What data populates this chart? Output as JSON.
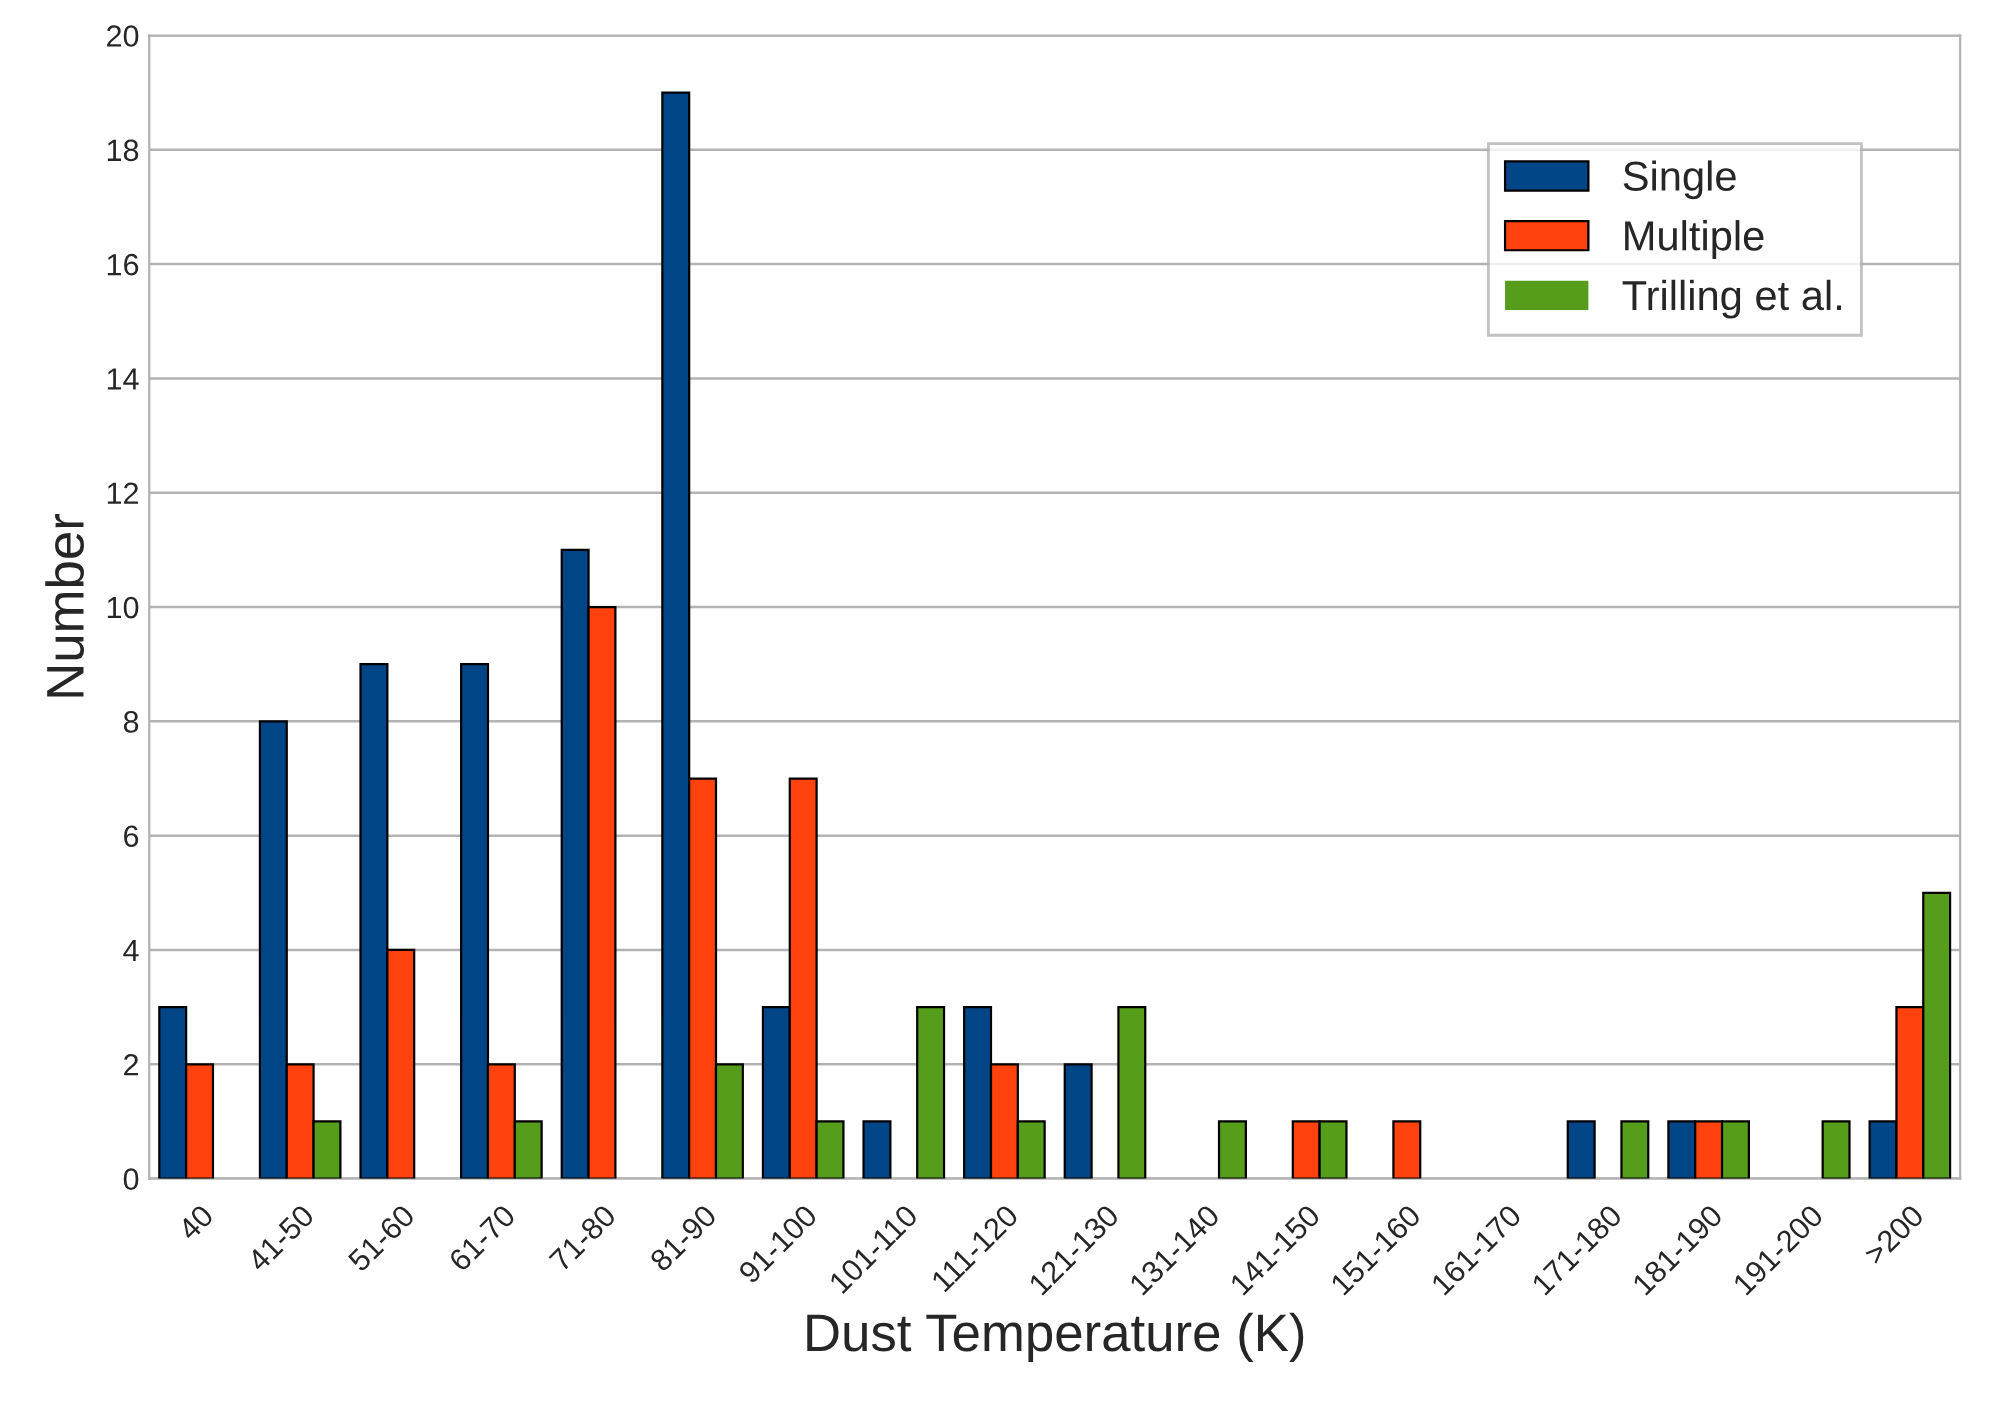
{
  "chart_data": {
    "type": "bar",
    "xlabel": "Dust Temperature (K)",
    "ylabel": "Number",
    "categories": [
      "40",
      "41-50",
      "51-60",
      "61-70",
      "71-80",
      "81-90",
      "91-100",
      "101-110",
      "111-120",
      "121-130",
      "131-140",
      "141-150",
      "151-160",
      "161-170",
      "171-180",
      "181-190",
      "191-200",
      ">200"
    ],
    "series": [
      {
        "name": "Single",
        "color": "#004586",
        "values": [
          3,
          8,
          9,
          9,
          11,
          19,
          3,
          1,
          3,
          2,
          0,
          0,
          0,
          0,
          1,
          1,
          0,
          1
        ]
      },
      {
        "name": "Multiple",
        "color": "#ff420e",
        "values": [
          2,
          2,
          4,
          2,
          10,
          7,
          7,
          0,
          2,
          0,
          0,
          1,
          1,
          0,
          0,
          1,
          0,
          3
        ]
      },
      {
        "name": "Trilling et al.",
        "color": "#579d1c",
        "values": [
          0,
          1,
          0,
          1,
          0,
          2,
          1,
          3,
          1,
          3,
          1,
          1,
          0,
          0,
          1,
          1,
          1,
          5
        ]
      }
    ],
    "ylim": [
      0,
      20
    ],
    "yticks": [
      0,
      2,
      4,
      6,
      8,
      10,
      12,
      14,
      16,
      18,
      20
    ],
    "grid": "y",
    "legend": "top right"
  }
}
